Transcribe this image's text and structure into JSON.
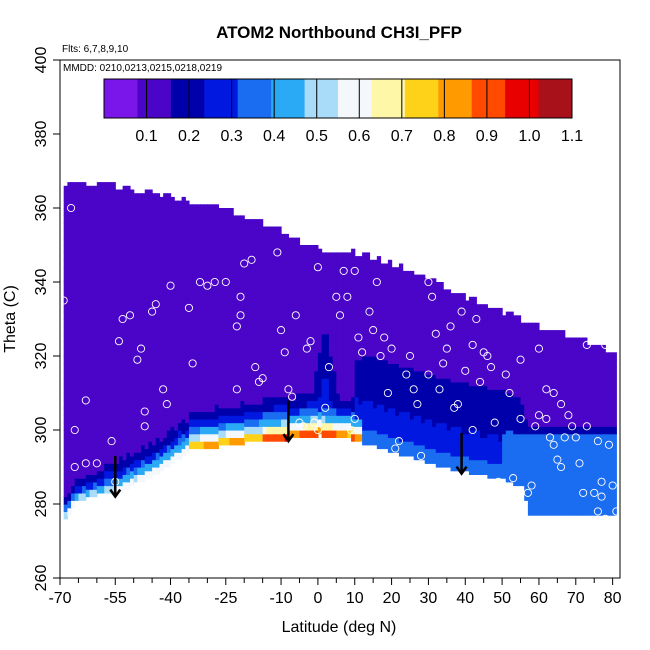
{
  "chart_data": {
    "type": "heatmap",
    "title": "ATOM2 Northbound CH3I_PFP",
    "annotations": [
      "Flts: 6,7,8,9,10",
      "MMDD: 0210,0213,0215,0218,0219"
    ],
    "xlabel": "Latitude (deg N)",
    "ylabel": "Theta (C)",
    "xlim": [
      -70,
      82
    ],
    "ylim": [
      260,
      400
    ],
    "x_ticks": [
      -70,
      -55,
      -40,
      -25,
      -10,
      0,
      10,
      20,
      30,
      40,
      50,
      60,
      70,
      80
    ],
    "x_minor_ticks": [
      -65,
      -60,
      -50,
      -45,
      -35,
      -30,
      -20,
      -15,
      -5,
      5,
      15,
      25,
      35,
      45,
      55,
      65,
      75
    ],
    "y_ticks": [
      260,
      280,
      300,
      320,
      340,
      360,
      380,
      400
    ],
    "colorbar": {
      "range": [
        0,
        1.1
      ],
      "ticks": [
        0.1,
        0.2,
        0.3,
        0.4,
        0.5,
        0.6,
        0.7,
        0.8,
        0.9,
        1.0,
        1.1
      ],
      "tick_labels": [
        "0.1",
        "0.2",
        "0.3",
        "0.4",
        "0.5",
        "0.6",
        "0.7",
        "0.8",
        "0.9",
        "1.0",
        "1.1"
      ],
      "colors": [
        "#7a16ea",
        "#4a05c8",
        "#0000aa",
        "#0018e0",
        "#1a6cf0",
        "#2aaaf4",
        "#a8dcf8",
        "#f4f8fc",
        "#fff7a8",
        "#ffd21a",
        "#ff9a00",
        "#ff4a00",
        "#e80000",
        "#a8101a"
      ]
    },
    "arrows_x": [
      -55,
      -8,
      39
    ],
    "samples": [
      [
        -69,
        335
      ],
      [
        -67,
        360
      ],
      [
        -66,
        300
      ],
      [
        -66,
        290
      ],
      [
        -63,
        308
      ],
      [
        -63,
        291
      ],
      [
        -60,
        291
      ],
      [
        -56,
        297
      ],
      [
        -55,
        286
      ],
      [
        -54,
        324
      ],
      [
        -53,
        330
      ],
      [
        -51,
        331
      ],
      [
        -49,
        319
      ],
      [
        -48,
        322
      ],
      [
        -47,
        305
      ],
      [
        -47,
        301
      ],
      [
        -45,
        332
      ],
      [
        -44,
        334
      ],
      [
        -42,
        311
      ],
      [
        -41,
        307
      ],
      [
        -40,
        339
      ],
      [
        -35,
        333
      ],
      [
        -34,
        318
      ],
      [
        -32,
        340
      ],
      [
        -30,
        339
      ],
      [
        -28,
        340
      ],
      [
        -25,
        340
      ],
      [
        -22,
        328
      ],
      [
        -22,
        311
      ],
      [
        -21,
        331
      ],
      [
        -21,
        336
      ],
      [
        -20,
        345
      ],
      [
        -18,
        346
      ],
      [
        -17,
        317
      ],
      [
        -16,
        313
      ],
      [
        -15,
        314
      ],
      [
        -11,
        348
      ],
      [
        -10,
        327
      ],
      [
        -9,
        321
      ],
      [
        -8,
        311
      ],
      [
        -7,
        309
      ],
      [
        -6,
        331
      ],
      [
        -5,
        302
      ],
      [
        -4,
        301
      ],
      [
        -3,
        322
      ],
      [
        -2,
        324
      ],
      [
        -1,
        302
      ],
      [
        0,
        344
      ],
      [
        0,
        300
      ],
      [
        2,
        306
      ],
      [
        3,
        317
      ],
      [
        5,
        336
      ],
      [
        6,
        331
      ],
      [
        7,
        343
      ],
      [
        8,
        336
      ],
      [
        9,
        300
      ],
      [
        10,
        303
      ],
      [
        10,
        343
      ],
      [
        11,
        325
      ],
      [
        12,
        321
      ],
      [
        14,
        332
      ],
      [
        15,
        327
      ],
      [
        16,
        340
      ],
      [
        17,
        320
      ],
      [
        18,
        325
      ],
      [
        19,
        310
      ],
      [
        20,
        322
      ],
      [
        21,
        295
      ],
      [
        22,
        297
      ],
      [
        24,
        315
      ],
      [
        25,
        320
      ],
      [
        26,
        311
      ],
      [
        27,
        307
      ],
      [
        28,
        293
      ],
      [
        30,
        340
      ],
      [
        30,
        315
      ],
      [
        31,
        336
      ],
      [
        32,
        326
      ],
      [
        33,
        311
      ],
      [
        34,
        318
      ],
      [
        35,
        322
      ],
      [
        36,
        328
      ],
      [
        37,
        306
      ],
      [
        38,
        307
      ],
      [
        39,
        332
      ],
      [
        40,
        316
      ],
      [
        42,
        323
      ],
      [
        42,
        300
      ],
      [
        43,
        330
      ],
      [
        44,
        313
      ],
      [
        45,
        321
      ],
      [
        46,
        320
      ],
      [
        47,
        317
      ],
      [
        48,
        302
      ],
      [
        49,
        286
      ],
      [
        50,
        335
      ],
      [
        51,
        315
      ],
      [
        52,
        310
      ],
      [
        53,
        287
      ],
      [
        55,
        319
      ],
      [
        55,
        303
      ],
      [
        57,
        283
      ],
      [
        58,
        285
      ],
      [
        59,
        301
      ],
      [
        60,
        322
      ],
      [
        60,
        304
      ],
      [
        62,
        311
      ],
      [
        62,
        303
      ],
      [
        63,
        298
      ],
      [
        64,
        296
      ],
      [
        64,
        310
      ],
      [
        65,
        292
      ],
      [
        66,
        290
      ],
      [
        66,
        307
      ],
      [
        67,
        298
      ],
      [
        68,
        304
      ],
      [
        69,
        301
      ],
      [
        70,
        298
      ],
      [
        71,
        291
      ],
      [
        72,
        283
      ],
      [
        73,
        323
      ],
      [
        73,
        301
      ],
      [
        75,
        283
      ],
      [
        76,
        278
      ],
      [
        76,
        297
      ],
      [
        77,
        286
      ],
      [
        77,
        282
      ],
      [
        78,
        276
      ],
      [
        78,
        323
      ],
      [
        79,
        296
      ],
      [
        80,
        285
      ],
      [
        81,
        278
      ]
    ]
  }
}
